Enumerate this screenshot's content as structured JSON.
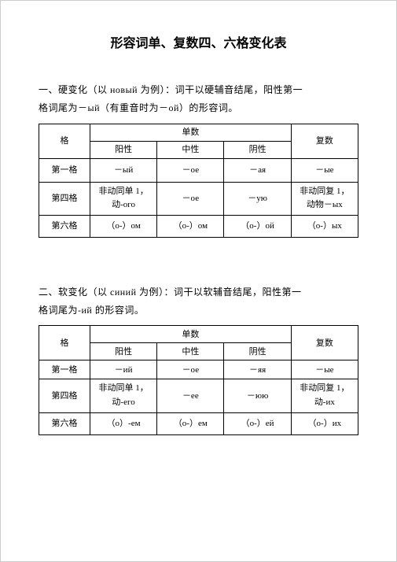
{
  "title": "形容词单、复数四、六格变化表",
  "section1": {
    "desc_line1": "一、硬变化（以 новый 为例）：词干以硬辅音结尾，阳性第一",
    "desc_line2": "格词尾为－ый（有重音时为－ой）的形容词。",
    "headers": {
      "case": "格",
      "singular": "单数",
      "plural": "复数",
      "masc": "阳性",
      "neut": "中性",
      "fem": "阴性"
    },
    "rows": {
      "nom": {
        "label": "第一格",
        "masc": "－ый",
        "neut": "－ое",
        "fem": "－ая",
        "plural": "－ые"
      },
      "acc": {
        "label": "第四格",
        "masc_line1": "非动同单 1，",
        "masc_line2": "动-ого",
        "neut": "－ое",
        "fem": "－ую",
        "plural_line1": "非动同复 1，",
        "plural_line2": "动物－ых"
      },
      "prep": {
        "label": "第六格",
        "masc": "（о-）ом",
        "neut": "（о-）ом",
        "fem": "（о-）ой",
        "plural": "（о-）ых"
      }
    }
  },
  "section2": {
    "desc_line1": "二、软变化（以 синий 为例）：词干以软辅音结尾，阳性第一",
    "desc_line2": "格词尾为-ий 的形容词。",
    "headers": {
      "case": "格",
      "singular": "单数",
      "plural": "复数",
      "masc": "阳性",
      "neut": "中性",
      "fem": "阴性"
    },
    "rows": {
      "nom": {
        "label": "第一格",
        "masc": "－ий",
        "neut": "－ое",
        "fem": "－яя",
        "plural": "－ые"
      },
      "acc": {
        "label": "第四格",
        "masc_line1": "非动同单 1，",
        "masc_line2": "动-его",
        "neut": "－ее",
        "fem": "－юю",
        "plural_line1": "非动同复 1，",
        "plural_line2": "动-их"
      },
      "prep": {
        "label": "第六格",
        "masc": "（о）-ем",
        "neut": "（о-）ем",
        "fem": "（о-）ей",
        "plural": "（о-）их"
      }
    }
  }
}
